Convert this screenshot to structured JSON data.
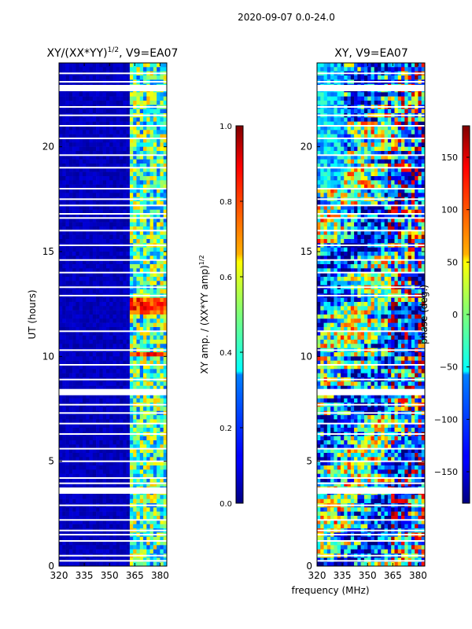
{
  "suptitle": "2020-09-07 0.0-24.0",
  "chart_data": [
    {
      "type": "heatmap",
      "title_main": "XY/(XX*YY)",
      "title_sup": "1/2",
      "title_tail": ", V9=EA07",
      "xlabel": "",
      "ylabel": "UT (hours)",
      "xlim": [
        320,
        384
      ],
      "ylim": [
        0,
        24
      ],
      "xticks": [
        "320",
        "335",
        "350",
        "365",
        "380"
      ],
      "xtick_values": [
        320,
        335,
        350,
        365,
        380
      ],
      "yticks": [
        "0",
        "5",
        "10",
        "15",
        "20"
      ],
      "ytick_values": [
        0,
        5,
        10,
        15,
        20
      ],
      "colorbar": {
        "label_main": "XY amp. / (XX*YY amp)",
        "label_sup": "1/2",
        "min": 0.0,
        "max": 1.0,
        "ticks": [
          "0.0",
          "0.2",
          "0.4",
          "0.6",
          "0.8",
          "1.0"
        ],
        "tick_values": [
          0.0,
          0.2,
          0.4,
          0.6,
          0.8,
          1.0
        ]
      },
      "gaps_hours": [
        0.25,
        0.5,
        1.2,
        1.5,
        1.7,
        2.2,
        2.9,
        3.6,
        3.95,
        4.2,
        5.0,
        5.6,
        6.3,
        6.8,
        7.3,
        7.7,
        8.3,
        8.9,
        9.6,
        10.3,
        11.2,
        12.9,
        13.3,
        14.0,
        14.6,
        15.3,
        16.0,
        16.6,
        16.8,
        17.2,
        17.5,
        18.0,
        19.0,
        19.6,
        20.4,
        21.0,
        21.5,
        21.9,
        22.8,
        23.1,
        23.5
      ]
    },
    {
      "type": "heatmap",
      "title": "XY, V9=EA07",
      "xlabel": "frequency (MHz)",
      "ylabel": "",
      "xlim": [
        320,
        384
      ],
      "ylim": [
        0,
        24
      ],
      "xticks": [
        "320",
        "335",
        "350",
        "365",
        "380"
      ],
      "xtick_values": [
        320,
        335,
        350,
        365,
        380
      ],
      "yticks": [
        "0",
        "5",
        "10",
        "15",
        "20"
      ],
      "ytick_values": [
        0,
        5,
        10,
        15,
        20
      ],
      "colorbar": {
        "label": "phase (deg.)",
        "min": -180,
        "max": 180,
        "ticks": [
          "−150",
          "−100",
          "−50",
          "0",
          "50",
          "100",
          "150"
        ],
        "tick_values": [
          -150,
          -100,
          -50,
          0,
          50,
          100,
          150
        ]
      },
      "gaps_hours": [
        0.25,
        0.5,
        1.2,
        1.5,
        1.7,
        2.2,
        2.9,
        3.6,
        3.95,
        4.2,
        5.0,
        5.6,
        6.3,
        6.8,
        7.3,
        7.7,
        8.3,
        8.9,
        9.6,
        10.3,
        11.2,
        12.9,
        13.3,
        14.0,
        14.6,
        15.3,
        16.0,
        16.6,
        16.8,
        17.2,
        17.5,
        18.0,
        19.0,
        19.6,
        20.4,
        21.0,
        21.5,
        21.9,
        22.8,
        23.1,
        23.5
      ]
    }
  ]
}
